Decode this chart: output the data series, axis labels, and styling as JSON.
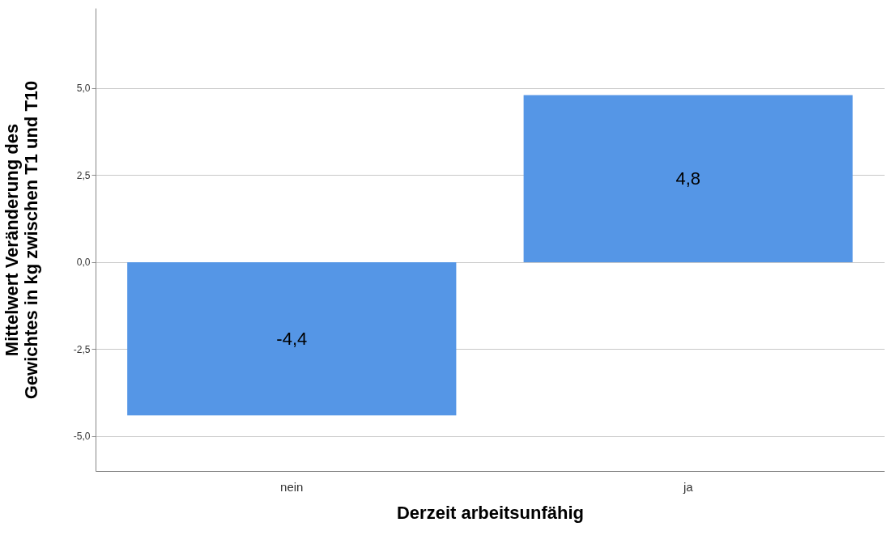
{
  "chart_data": {
    "type": "bar",
    "xlabel": "Derzeit arbeitsunfähig",
    "ylabel": "Mittelwert Veränderung des Gewichtes in kg zwischen T1 und T10",
    "categories": [
      "nein",
      "ja"
    ],
    "values": [
      -4.4,
      4.8
    ],
    "value_labels": [
      "-4,4",
      "4,8"
    ],
    "color": "#5596e6",
    "ylim": [
      -6.0,
      7.3
    ],
    "yticks": [
      {
        "value": -5,
        "label": "-5,0"
      },
      {
        "value": -2.5,
        "label": "-2,5"
      },
      {
        "value": 0,
        "label": "0,0"
      },
      {
        "value": 2.5,
        "label": "2,5"
      },
      {
        "value": 5,
        "label": "5,0"
      }
    ],
    "grid": "y"
  }
}
